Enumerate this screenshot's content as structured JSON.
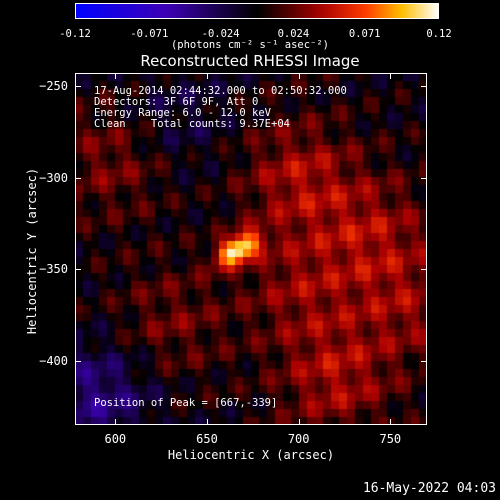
{
  "colorbar": {
    "ticks": [
      "-0.12",
      "-0.071",
      "-0.024",
      "0.024",
      "0.071",
      "0.12"
    ],
    "tick_values": [
      -0.12,
      -0.071,
      -0.024,
      0.024,
      0.071,
      0.12
    ],
    "range": [
      -0.12,
      0.12
    ],
    "unit": "(photons cm⁻² s⁻¹ asec⁻²)"
  },
  "chart_data": {
    "type": "heatmap",
    "title": "Reconstructed RHESSI Image",
    "xlabel": "Heliocentric X (arcsec)",
    "ylabel": "Heliocentric Y (arcsec)",
    "xlim": [
      578,
      770
    ],
    "ylim": [
      -435,
      -243
    ],
    "x_ticks": [
      600,
      650,
      700,
      750
    ],
    "y_ticks": [
      -250,
      -300,
      -350,
      -400
    ],
    "colormap": "heat",
    "value_range": [
      -0.12,
      0.12
    ],
    "peak": {
      "x": 667,
      "y": -339,
      "value": 0.12
    },
    "features": [
      {
        "x": 667,
        "y": -339,
        "value": 0.12
      },
      {
        "x": 700,
        "y": -300,
        "value": 0.04
      },
      {
        "x": 740,
        "y": -330,
        "value": 0.035
      },
      {
        "x": 720,
        "y": -410,
        "value": 0.04
      },
      {
        "x": 600,
        "y": -290,
        "value": 0.03
      },
      {
        "x": 630,
        "y": -380,
        "value": 0.025
      },
      {
        "x": 590,
        "y": -420,
        "value": -0.04
      },
      {
        "x": 630,
        "y": -270,
        "value": -0.02
      },
      {
        "x": 700,
        "y": -360,
        "value": 0.03
      },
      {
        "x": 760,
        "y": -370,
        "value": 0.03
      }
    ]
  },
  "info": {
    "time_range": "17-Aug-2014 02:44:32.000 to 02:50:32.000",
    "detectors": "Detectors: 3F 6F 9F, Att 0",
    "energy": "Energy Range: 6.0 - 12.0 keV",
    "method": "Clean    Total counts: 9.37E+04",
    "peak_label": "Position of Peak = [667,-339]"
  },
  "footer": {
    "date": "16-May-2022 04:03"
  }
}
